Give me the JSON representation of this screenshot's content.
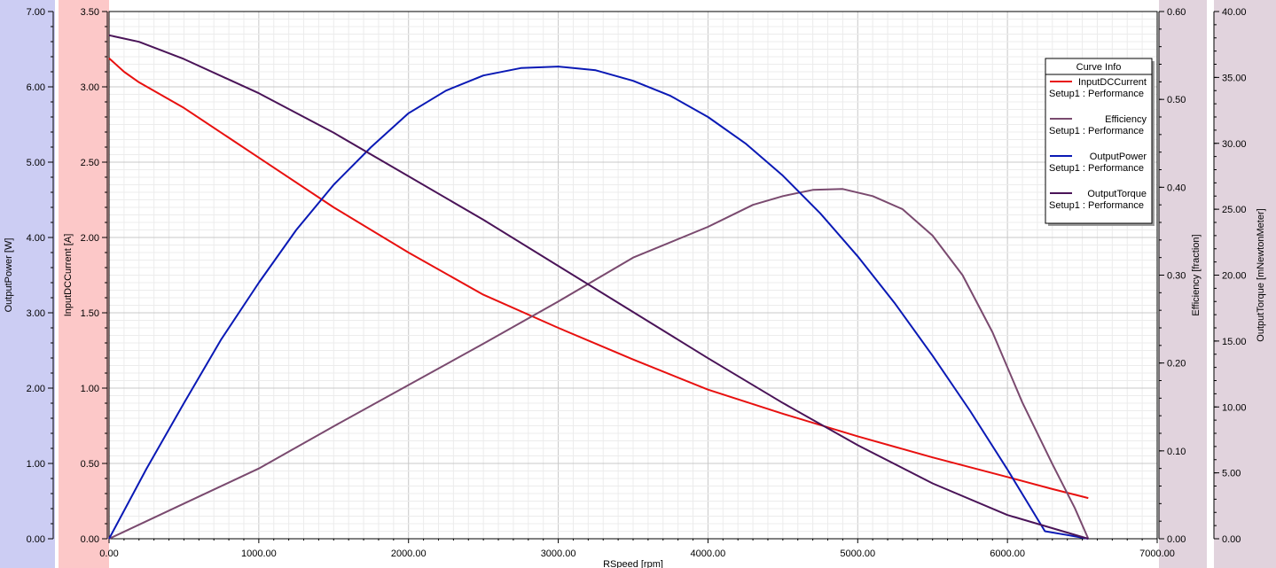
{
  "chart_data": {
    "type": "line",
    "title": "",
    "xlabel": "RSpeed [rpm]",
    "xlim": [
      0,
      7000
    ],
    "xticks": [
      "0.00",
      "1000.00",
      "2000.00",
      "3000.00",
      "4000.00",
      "5000.00",
      "6000.00",
      "7000.00"
    ],
    "grid": true,
    "legend": {
      "title": "Curve Info",
      "placement": "top-right"
    },
    "axes": [
      {
        "id": "power",
        "label": "OutputPower [W]",
        "lim": [
          0,
          7
        ],
        "side": "left",
        "band_color": "#cccdf3",
        "ticks": [
          "0.00",
          "1.00",
          "2.00",
          "3.00",
          "4.00",
          "5.00",
          "6.00",
          "7.00"
        ]
      },
      {
        "id": "current",
        "label": "InputDCCurrent [A]",
        "lim": [
          0,
          3.5
        ],
        "side": "left",
        "band_color": "#fcc8c8",
        "ticks": [
          "0.00",
          "0.50",
          "1.00",
          "1.50",
          "2.00",
          "2.50",
          "3.00",
          "3.50"
        ]
      },
      {
        "id": "eff",
        "label": "Efficiency [fraction]",
        "lim": [
          0,
          0.6
        ],
        "side": "right",
        "band_color": "#e1d3dd",
        "ticks": [
          "0.00",
          "0.10",
          "0.20",
          "0.30",
          "0.40",
          "0.50",
          "0.60"
        ]
      },
      {
        "id": "torque",
        "label": "OutputTorque [mNewtonMeter]",
        "lim": [
          0,
          40
        ],
        "side": "right",
        "band_color": "#e1d3dd",
        "ticks": [
          "0.00",
          "5.00",
          "10.00",
          "15.00",
          "20.00",
          "25.00",
          "30.00",
          "35.00",
          "40.00"
        ]
      }
    ],
    "series": [
      {
        "name": "InputDCCurrent",
        "sub": "Setup1 : Performance",
        "axis": "current",
        "color": "#e8100f",
        "x": [
          0,
          100,
          200,
          500,
          1000,
          1500,
          2000,
          2500,
          3000,
          3500,
          4000,
          4500,
          5000,
          5500,
          6000,
          6300,
          6500,
          6540
        ],
        "y": [
          3.19,
          3.1,
          3.03,
          2.86,
          2.53,
          2.2,
          1.9,
          1.62,
          1.4,
          1.19,
          0.99,
          0.83,
          0.68,
          0.54,
          0.41,
          0.33,
          0.28,
          0.27
        ]
      },
      {
        "name": "Efficiency",
        "sub": "Setup1 : Performance",
        "axis": "eff",
        "color": "#7a4a6f",
        "x": [
          0,
          500,
          1000,
          1500,
          2000,
          2500,
          3000,
          3500,
          4000,
          4300,
          4500,
          4700,
          4900,
          5100,
          5300,
          5500,
          5700,
          5900,
          6100,
          6300,
          6450,
          6540
        ],
        "y": [
          0,
          0.04,
          0.08,
          0.128,
          0.175,
          0.222,
          0.27,
          0.32,
          0.355,
          0.38,
          0.39,
          0.397,
          0.398,
          0.39,
          0.375,
          0.345,
          0.3,
          0.235,
          0.155,
          0.085,
          0.035,
          0
        ]
      },
      {
        "name": "OutputPower",
        "sub": "Setup1 : Performance",
        "axis": "power",
        "color": "#0a19b5",
        "x": [
          0,
          250,
          500,
          750,
          1000,
          1250,
          1500,
          1750,
          2000,
          2250,
          2500,
          2750,
          3000,
          3250,
          3500,
          3750,
          4000,
          4250,
          4500,
          4750,
          5000,
          5250,
          5500,
          5750,
          6000,
          6250,
          6400,
          6540
        ],
        "y": [
          0,
          0.93,
          1.8,
          2.65,
          3.4,
          4.1,
          4.7,
          5.2,
          5.65,
          5.95,
          6.15,
          6.25,
          6.27,
          6.22,
          6.08,
          5.88,
          5.6,
          5.25,
          4.82,
          4.32,
          3.75,
          3.12,
          2.43,
          1.7,
          0.92,
          0.1,
          0.05,
          0
        ]
      },
      {
        "name": "OutputTorque",
        "sub": "Setup1 : Performance",
        "axis": "torque",
        "color": "#4a1458",
        "x": [
          0,
          200,
          500,
          1000,
          1500,
          2000,
          2500,
          3000,
          3500,
          4000,
          4500,
          5000,
          5500,
          6000,
          6540
        ],
        "y": [
          38.2,
          37.7,
          36.4,
          33.8,
          30.8,
          27.5,
          24.2,
          20.7,
          17.2,
          13.7,
          10.3,
          7.1,
          4.2,
          1.8,
          0
        ]
      }
    ]
  }
}
